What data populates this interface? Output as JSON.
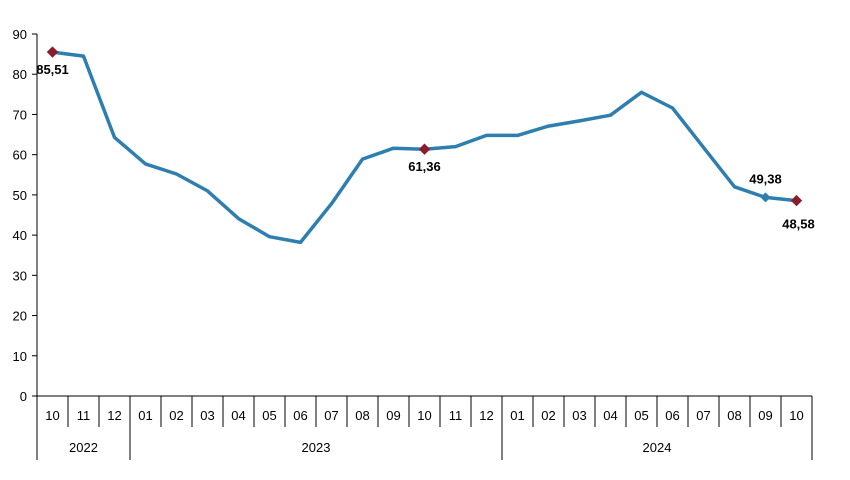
{
  "chart_data": {
    "type": "line",
    "title": "",
    "xlabel": "",
    "ylabel": "",
    "ylim": [
      0,
      90
    ],
    "yticks": [
      0,
      10,
      20,
      30,
      40,
      50,
      60,
      70,
      80,
      90
    ],
    "grid": false,
    "line_color": "#2e7fb0",
    "marker_color": "#8b1c2b",
    "x": [
      "10",
      "11",
      "12",
      "01",
      "02",
      "03",
      "04",
      "05",
      "06",
      "07",
      "08",
      "09",
      "10",
      "11",
      "12",
      "01",
      "02",
      "03",
      "04",
      "05",
      "06",
      "07",
      "08",
      "09",
      "10"
    ],
    "years": [
      {
        "label": "2022",
        "start": 0,
        "end": 2
      },
      {
        "label": "2023",
        "start": 3,
        "end": 14
      },
      {
        "label": "2024",
        "start": 15,
        "end": 24
      }
    ],
    "series": [
      {
        "values": [
          85.51,
          84.5,
          64.3,
          57.7,
          55.2,
          51.0,
          44.1,
          39.6,
          38.2,
          47.8,
          58.9,
          61.6,
          61.36,
          62.0,
          64.8,
          64.8,
          67.1,
          68.4,
          69.8,
          75.5,
          71.6,
          61.8,
          52.0,
          49.38,
          48.58
        ]
      }
    ],
    "annotations": [
      {
        "index": 0,
        "text": "85,51",
        "marker": true
      },
      {
        "index": 12,
        "text": "61,36",
        "marker": true
      },
      {
        "index": 23,
        "text": "49,38",
        "marker": false
      },
      {
        "index": 24,
        "text": "48,58",
        "marker": true
      }
    ]
  }
}
